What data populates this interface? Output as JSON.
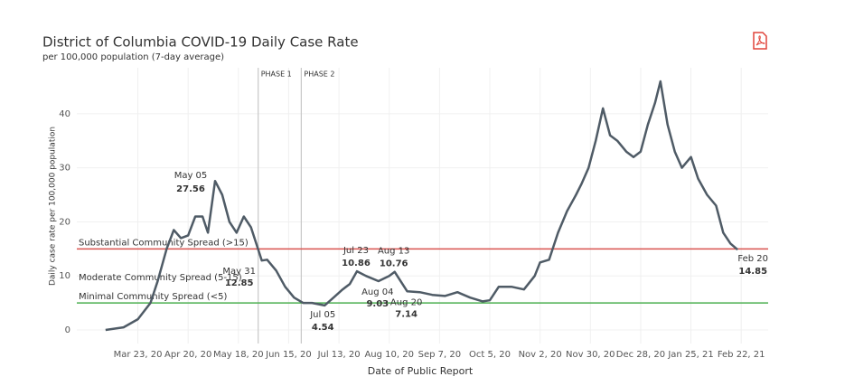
{
  "chart_data": {
    "type": "line",
    "title": "District of Columbia COVID-19 Daily Case Rate",
    "subtitle": "per 100,000 population (7-day average)",
    "x_label": "Date of Public Report",
    "y_label": "Daily case rate per 100,000 population",
    "xlim": [
      "2020-02-18",
      "2021-03-09"
    ],
    "ylim": [
      -2.5,
      48.5
    ],
    "yticks": [
      0,
      10,
      20,
      30,
      40
    ],
    "xticks": [
      {
        "value": "2020-03-23",
        "label": "Mar 23, 20"
      },
      {
        "value": "2020-04-20",
        "label": "Apr 20, 20"
      },
      {
        "value": "2020-05-18",
        "label": "May 18, 20"
      },
      {
        "value": "2020-06-15",
        "label": "Jun 15, 20"
      },
      {
        "value": "2020-07-13",
        "label": "Jul 13, 20"
      },
      {
        "value": "2020-08-10",
        "label": "Aug 10, 20"
      },
      {
        "value": "2020-09-07",
        "label": "Sep 7, 20"
      },
      {
        "value": "2020-10-05",
        "label": "Oct 5, 20"
      },
      {
        "value": "2020-11-02",
        "label": "Nov 2, 20"
      },
      {
        "value": "2020-11-30",
        "label": "Nov 30, 20"
      },
      {
        "value": "2020-12-28",
        "label": "Dec 28, 20"
      },
      {
        "value": "2021-01-25",
        "label": "Jan 25, 21"
      },
      {
        "value": "2021-02-22",
        "label": "Feb 22, 21"
      }
    ],
    "grid": true,
    "x": [
      "2020-03-05",
      "2020-03-15",
      "2020-03-23",
      "2020-03-30",
      "2020-04-03",
      "2020-04-08",
      "2020-04-12",
      "2020-04-16",
      "2020-04-20",
      "2020-04-24",
      "2020-04-28",
      "2020-05-01",
      "2020-05-05",
      "2020-05-09",
      "2020-05-13",
      "2020-05-17",
      "2020-05-21",
      "2020-05-25",
      "2020-05-31",
      "2020-06-03",
      "2020-06-08",
      "2020-06-13",
      "2020-06-18",
      "2020-06-23",
      "2020-06-28",
      "2020-07-05",
      "2020-07-10",
      "2020-07-15",
      "2020-07-19",
      "2020-07-23",
      "2020-07-28",
      "2020-08-04",
      "2020-08-10",
      "2020-08-13",
      "2020-08-20",
      "2020-08-27",
      "2020-09-03",
      "2020-09-10",
      "2020-09-17",
      "2020-09-24",
      "2020-10-01",
      "2020-10-05",
      "2020-10-10",
      "2020-10-17",
      "2020-10-24",
      "2020-10-30",
      "2020-11-02",
      "2020-11-07",
      "2020-11-12",
      "2020-11-17",
      "2020-11-22",
      "2020-11-25",
      "2020-11-29",
      "2020-12-03",
      "2020-12-07",
      "2020-12-11",
      "2020-12-15",
      "2020-12-20",
      "2020-12-24",
      "2020-12-28",
      "2021-01-01",
      "2021-01-05",
      "2021-01-08",
      "2021-01-12",
      "2021-01-16",
      "2021-01-20",
      "2021-01-25",
      "2021-01-29",
      "2021-02-03",
      "2021-02-08",
      "2021-02-12",
      "2021-02-16",
      "2021-02-20"
    ],
    "series": [
      {
        "name": "Daily case rate",
        "color": "#4f5b66",
        "values": [
          0,
          0.5,
          2,
          5,
          9,
          15,
          18.5,
          17,
          17.5,
          21,
          21,
          18,
          27.56,
          25,
          20,
          18,
          21,
          19,
          12.85,
          13,
          11,
          8,
          6,
          5,
          5,
          4.54,
          6,
          7.5,
          8.5,
          10.86,
          10,
          9.03,
          10,
          10.76,
          7.14,
          7,
          6.5,
          6.3,
          7,
          6,
          5.3,
          5.5,
          8,
          8,
          7.5,
          10,
          12.5,
          13,
          18,
          22,
          25,
          27,
          30,
          35,
          41,
          36,
          35,
          33,
          32,
          33,
          38,
          42,
          46,
          38,
          33,
          30,
          32,
          28,
          25,
          23,
          18,
          16,
          14.85
        ]
      }
    ],
    "reference_lines": [
      {
        "value": 15,
        "label": "Substantial Community Spread (>15)",
        "color": "#d9534f"
      },
      {
        "value": 5,
        "label": "Minimal Community Spread (<5)",
        "color": "#4caf50"
      }
    ],
    "ranges": [
      {
        "from": 5,
        "to": 15,
        "label": "Moderate Community Spread (5-15)",
        "color": "#c49a2a"
      }
    ],
    "phases": [
      {
        "label": "PHASE 1",
        "x": "2020-05-29"
      },
      {
        "label": "PHASE 2",
        "x": "2020-06-22"
      }
    ],
    "annotations": [
      {
        "text": "May 05",
        "x": "2020-05-05"
      },
      {
        "text": "May 31",
        "x": "2020-05-31"
      },
      {
        "text": "Jul 05",
        "x": "2020-07-05"
      },
      {
        "text": "Jul 23",
        "x": "2020-07-23"
      },
      {
        "text": "Aug 04",
        "x": "2020-08-04"
      },
      {
        "text": "Aug 13",
        "x": "2020-08-13"
      },
      {
        "text": "Aug 20",
        "x": "2020-08-20"
      },
      {
        "text": "Feb 20",
        "x": "2021-02-20"
      }
    ]
  }
}
